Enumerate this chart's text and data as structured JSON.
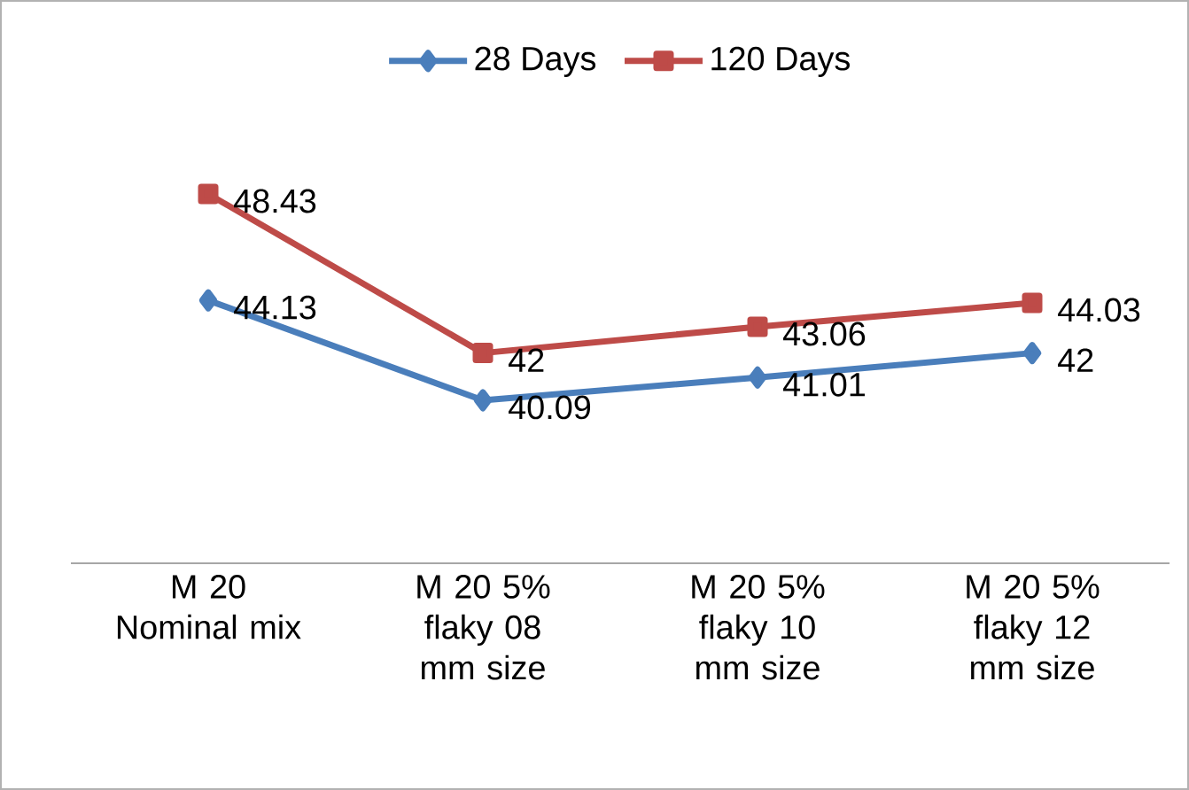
{
  "chart_data": {
    "type": "line",
    "categories": [
      "M 20 Nominal mix",
      "M 20 5% flaky 08 mm size",
      "M 20 5% flaky 10 mm size",
      "M 20 5% flaky 12 mm size"
    ],
    "series": [
      {
        "name": "28 Days",
        "color": "#4a7ebb",
        "marker": "diamond",
        "values": [
          44.13,
          40.09,
          41.01,
          42
        ]
      },
      {
        "name": "120 Days",
        "color": "#be4b48",
        "marker": "square",
        "values": [
          48.43,
          42,
          43.06,
          44.03
        ]
      }
    ],
    "data_labels": true,
    "legend": "top",
    "grid": false
  }
}
